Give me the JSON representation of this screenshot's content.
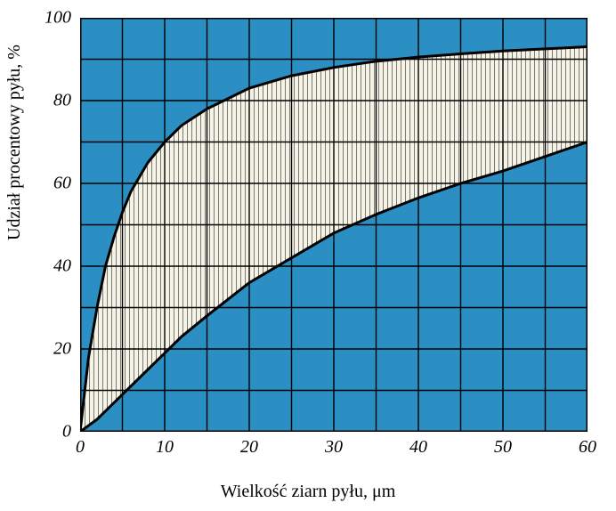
{
  "chart": {
    "type": "area_band",
    "xlabel": "Wielkość ziarn pyłu, μm",
    "ylabel": "Udział procentowy pyłu, %",
    "label_fontsize": 20,
    "tick_fontsize": 20,
    "tick_fontstyle": "italic",
    "xlim": [
      0,
      60
    ],
    "ylim": [
      0,
      100
    ],
    "xtick_step": 5,
    "xtick_label_step": 10,
    "ytick_step": 10,
    "ytick_label_step": 20,
    "xticks_labels": [
      "0",
      "10",
      "20",
      "30",
      "40",
      "50",
      "60"
    ],
    "yticks_labels": [
      "0",
      "20",
      "40",
      "60",
      "80",
      "100"
    ],
    "background_color": "#2b8fc3",
    "page_color": "#ffffff",
    "grid_color": "#000000",
    "grid_width": 1.4,
    "border_color": "#000000",
    "border_width": 3,
    "band_fill": "#f5f2e6",
    "band_hatch_color": "#000000",
    "band_hatch_spacing": 5,
    "curve_color": "#000000",
    "curve_width": 3,
    "upper_curve": {
      "x": [
        0,
        1,
        2,
        3,
        4,
        5,
        6,
        8,
        10,
        12,
        15,
        20,
        25,
        30,
        35,
        40,
        45,
        50,
        55,
        60
      ],
      "y": [
        0,
        18,
        30,
        40,
        47,
        53,
        58,
        65,
        70,
        74,
        78,
        83,
        86,
        88,
        89.5,
        90.5,
        91.3,
        92,
        92.5,
        93
      ]
    },
    "lower_curve": {
      "x": [
        0,
        2,
        4,
        6,
        8,
        10,
        12,
        15,
        20,
        25,
        30,
        35,
        40,
        45,
        50,
        55,
        60
      ],
      "y": [
        0,
        3,
        7,
        11,
        15,
        19,
        23,
        28,
        36,
        42,
        48,
        52.5,
        56.5,
        60,
        63,
        66.5,
        70
      ]
    }
  }
}
